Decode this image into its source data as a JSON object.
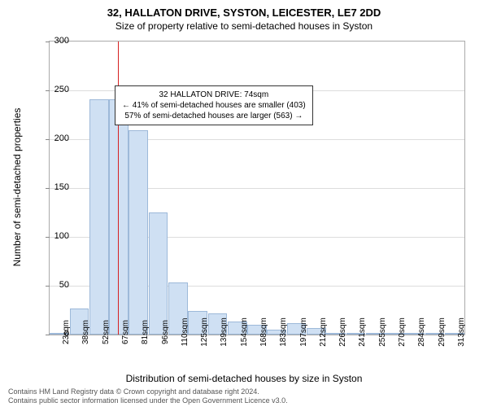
{
  "chart": {
    "type": "histogram",
    "title_main": "32, HALLATON DRIVE, SYSTON, LEICESTER, LE7 2DD",
    "title_sub": "Size of property relative to semi-detached houses in Syston",
    "ylabel": "Number of semi-detached properties",
    "xlabel": "Distribution of semi-detached houses by size in Syston",
    "ylim": [
      0,
      300
    ],
    "ytick_step": 50,
    "yticks": [
      0,
      50,
      100,
      150,
      200,
      250,
      300
    ],
    "x_categories": [
      "23sqm",
      "38sqm",
      "52sqm",
      "67sqm",
      "81sqm",
      "96sqm",
      "110sqm",
      "125sqm",
      "139sqm",
      "154sqm",
      "168sqm",
      "183sqm",
      "197sqm",
      "212sqm",
      "226sqm",
      "241sqm",
      "255sqm",
      "270sqm",
      "284sqm",
      "299sqm",
      "313sqm"
    ],
    "values": [
      2,
      27,
      241,
      241,
      209,
      125,
      53,
      24,
      22,
      13,
      10,
      5,
      12,
      7,
      2,
      2,
      2,
      0,
      0,
      0,
      2
    ],
    "bar_color": "#cfe0f3",
    "bar_border_color": "#9db9d9",
    "background_color": "#ffffff",
    "grid_color": "#dddddd",
    "marker": {
      "position_index": 3.45,
      "color": "#d62020"
    },
    "info_box": {
      "line1": "32 HALLATON DRIVE: 74sqm",
      "line2": "← 41% of semi-detached houses are smaller (403)",
      "line3": "57% of semi-detached houses are larger (563) →"
    },
    "footer_line1": "Contains HM Land Registry data © Crown copyright and database right 2024.",
    "footer_line2": "Contains public sector information licensed under the Open Government Licence v3.0.",
    "title_fontsize": 13,
    "label_fontsize": 12,
    "tick_fontsize": 11
  }
}
